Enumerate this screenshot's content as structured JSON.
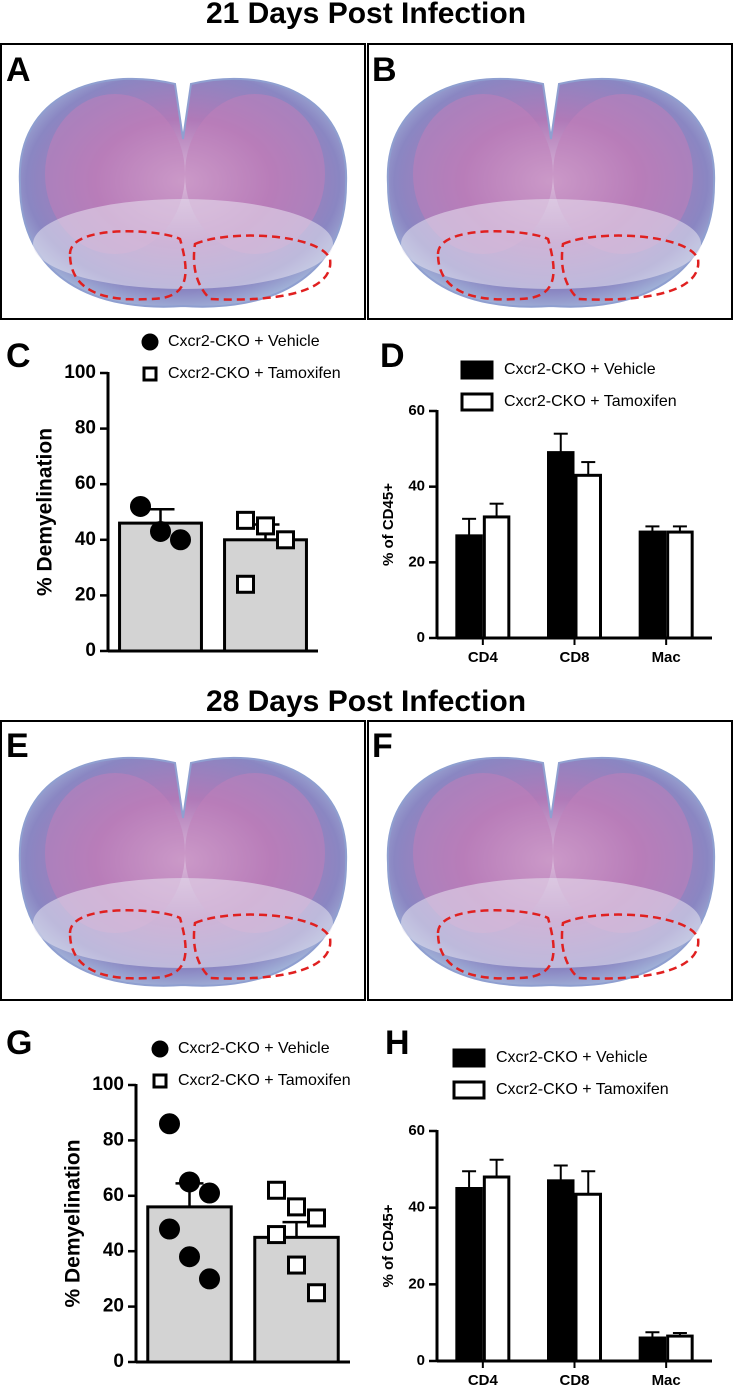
{
  "sections": [
    {
      "title": "21 Days Post Infection",
      "images": [
        "A",
        "B"
      ]
    },
    {
      "title": "28 Days Post Infection",
      "images": [
        "E",
        "F"
      ]
    }
  ],
  "chart_data": [
    {
      "type": "dotbar",
      "label": "C",
      "ylabel": "% Demyelination",
      "ylim": [
        0,
        100
      ],
      "yticks": [
        0,
        20,
        40,
        60,
        80,
        100
      ],
      "bar_color": "#d3d3d3",
      "series": [
        {
          "name": "Cxcr2-CKO + Vehicle",
          "color": "#000000",
          "marker": "circle",
          "values": [
            46
          ],
          "errors": [
            5
          ],
          "points": [
            52,
            43,
            40
          ]
        },
        {
          "name": "Cxcr2-CKO + Tamoxifen",
          "color": "#ffffff",
          "marker": "square",
          "values": [
            40
          ],
          "errors": [
            5.5
          ],
          "points": [
            47,
            45,
            40,
            24
          ]
        }
      ]
    },
    {
      "type": "bar",
      "label": "D",
      "ylabel": "% of CD45+",
      "ylim": [
        0,
        60
      ],
      "yticks": [
        0,
        20,
        40,
        60
      ],
      "categories": [
        "CD4",
        "CD8",
        "Mac"
      ],
      "series": [
        {
          "name": "Cxcr2-CKO + Vehicle",
          "color": "#000000",
          "values": [
            27,
            49,
            28
          ],
          "errors": [
            4.5,
            5,
            1.5
          ]
        },
        {
          "name": "Cxcr2-CKO + Tamoxifen",
          "color": "#ffffff",
          "values": [
            32,
            43,
            28
          ],
          "errors": [
            3.5,
            3.5,
            1.5
          ]
        }
      ]
    },
    {
      "type": "dotbar",
      "label": "G",
      "ylabel": "% Demyelination",
      "ylim": [
        0,
        100
      ],
      "yticks": [
        0,
        20,
        40,
        60,
        80,
        100
      ],
      "bar_color": "#d3d3d3",
      "series": [
        {
          "name": "Cxcr2-CKO + Vehicle",
          "color": "#000000",
          "marker": "circle",
          "values": [
            56
          ],
          "errors": [
            8.5
          ],
          "points": [
            86,
            65,
            61,
            48,
            38,
            30
          ]
        },
        {
          "name": "Cxcr2-CKO + Tamoxifen",
          "color": "#ffffff",
          "marker": "square",
          "values": [
            45
          ],
          "errors": [
            5.5
          ],
          "points": [
            62,
            56,
            52,
            46,
            35,
            25
          ]
        }
      ]
    },
    {
      "type": "bar",
      "label": "H",
      "ylabel": "% of CD45+",
      "ylim": [
        0,
        60
      ],
      "yticks": [
        0,
        20,
        40,
        60
      ],
      "categories": [
        "CD4",
        "CD8",
        "Mac"
      ],
      "series": [
        {
          "name": "Cxcr2-CKO + Vehicle",
          "color": "#000000",
          "values": [
            45,
            47,
            6
          ],
          "errors": [
            4.5,
            4,
            1.5
          ]
        },
        {
          "name": "Cxcr2-CKO + Tamoxifen",
          "color": "#ffffff",
          "values": [
            48,
            43.5,
            6.5
          ],
          "errors": [
            4.5,
            6,
            0.8
          ]
        }
      ]
    }
  ]
}
